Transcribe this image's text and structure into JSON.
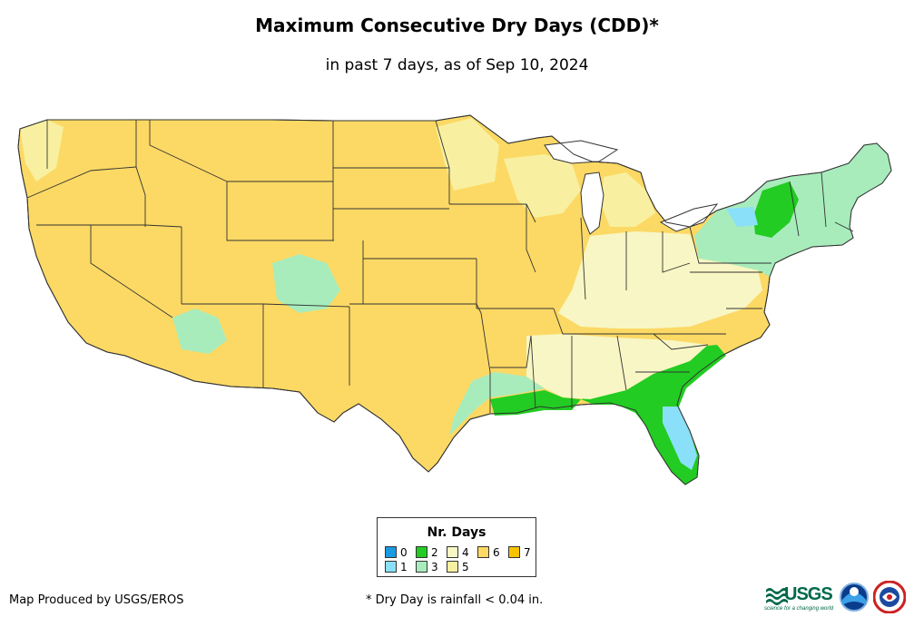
{
  "header": {
    "title": "Maximum Consecutive Dry Days (CDD)*",
    "subtitle": "in past 7 days, as of Sep 10, 2024"
  },
  "legend": {
    "title": "Nr. Days",
    "items": [
      {
        "label": "0",
        "color": "#1a9ae0"
      },
      {
        "label": "1",
        "color": "#8ae0f8"
      },
      {
        "label": "2",
        "color": "#22cc22"
      },
      {
        "label": "3",
        "color": "#a8ecbc"
      },
      {
        "label": "4",
        "color": "#f8f6c4"
      },
      {
        "label": "5",
        "color": "#f8f0a0"
      },
      {
        "label": "6",
        "color": "#fcd964"
      },
      {
        "label": "7",
        "color": "#f8c400"
      }
    ]
  },
  "footer": {
    "credit": "Map Produced by USGS/EROS",
    "footnote": "* Dry Day is rainfall < 0.04 in.",
    "logos": {
      "usgs": "USGS",
      "usgs_tagline": "science for a changing world",
      "noaa": "noaa-logo",
      "nws": "nws-logo"
    }
  },
  "map": {
    "colors": {
      "dry6": "#fcd964",
      "dry5": "#f8f0a0",
      "dry4": "#f8f6c4",
      "wet3": "#a8ecbc",
      "wet2": "#22cc22",
      "wet1": "#8ae0f8",
      "wet0": "#1a9ae0",
      "border": "#333333"
    }
  }
}
